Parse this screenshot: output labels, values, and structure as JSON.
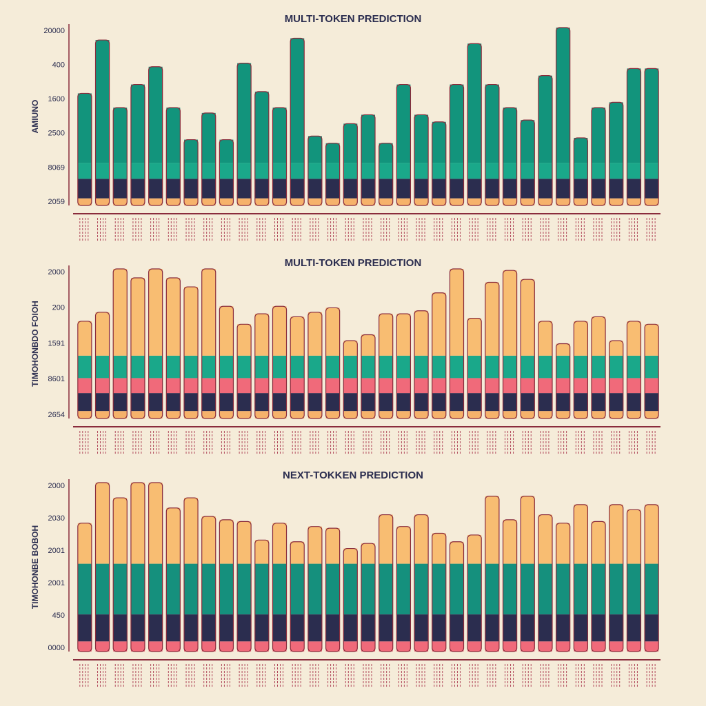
{
  "chart_data": [
    {
      "type": "stacked_bar",
      "title": "MULTI-TOKEN PREDICTION",
      "ylabel": "AMIUNO",
      "y_axis_labels": [
        "20000",
        "400",
        "1600",
        "2500",
        "8069",
        "2059"
      ],
      "categories": [
        null,
        null,
        null,
        null,
        null,
        null,
        null,
        null,
        null,
        null,
        null,
        null,
        null,
        null,
        null,
        null,
        null,
        null,
        null,
        null,
        null,
        null,
        null,
        null,
        null,
        null,
        null,
        null,
        null,
        null,
        null,
        null,
        null
      ],
      "ylim": [
        0,
        100
      ],
      "series": [
        {
          "color": "#f6b26b",
          "values": [
            4,
            4,
            4,
            4,
            4,
            4,
            4,
            4,
            4,
            4,
            4,
            4,
            4,
            4,
            4,
            4,
            4,
            4,
            4,
            4,
            4,
            4,
            4,
            4,
            4,
            4,
            4,
            4,
            4,
            4,
            4,
            4,
            4
          ]
        },
        {
          "color": "#2b2d4f",
          "values": [
            11,
            11,
            11,
            11,
            11,
            11,
            11,
            11,
            11,
            11,
            11,
            11,
            11,
            11,
            11,
            11,
            11,
            11,
            11,
            11,
            11,
            11,
            11,
            11,
            11,
            11,
            11,
            11,
            11,
            11,
            11,
            11,
            11
          ]
        },
        {
          "color": "#1aa88a",
          "values": [
            9,
            9,
            9,
            9,
            9,
            9,
            9,
            9,
            9,
            9,
            9,
            9,
            9,
            9,
            9,
            9,
            9,
            9,
            9,
            9,
            9,
            9,
            9,
            9,
            9,
            9,
            9,
            9,
            9,
            9,
            9,
            9,
            9
          ]
        },
        {
          "color": "#12947c",
          "values": [
            39,
            69,
            31,
            44,
            54,
            31,
            13,
            28,
            13,
            56,
            40,
            31,
            70,
            15,
            11,
            22,
            27,
            11,
            44,
            27,
            23,
            44,
            67,
            44,
            31,
            24,
            49,
            76,
            14,
            31,
            34,
            53,
            53
          ]
        }
      ]
    },
    {
      "type": "stacked_bar",
      "title": "MULTI-TOKEN PREDICTION",
      "ylabel": "TIMOHONBDO FOIOH",
      "y_axis_labels": [
        "2000",
        "200",
        "1591",
        "8601",
        "2654"
      ],
      "categories": [
        null,
        null,
        null,
        null,
        null,
        null,
        null,
        null,
        null,
        null,
        null,
        null,
        null,
        null,
        null,
        null,
        null,
        null,
        null,
        null,
        null,
        null,
        null,
        null,
        null,
        null,
        null,
        null,
        null,
        null,
        null,
        null,
        null
      ],
      "ylim": [
        0,
        100
      ],
      "series": [
        {
          "color": "#f6b26b",
          "values": [
            5,
            5,
            5,
            5,
            5,
            5,
            5,
            5,
            5,
            5,
            5,
            5,
            5,
            5,
            5,
            5,
            5,
            5,
            5,
            5,
            5,
            5,
            5,
            5,
            5,
            5,
            5,
            5,
            5,
            5,
            5,
            5,
            5
          ]
        },
        {
          "color": "#2b2d4f",
          "values": [
            12,
            12,
            12,
            12,
            12,
            12,
            12,
            12,
            12,
            12,
            12,
            12,
            12,
            12,
            12,
            12,
            12,
            12,
            12,
            12,
            12,
            12,
            12,
            12,
            12,
            12,
            12,
            12,
            12,
            12,
            12,
            12,
            12
          ]
        },
        {
          "color": "#f06a7a",
          "values": [
            10,
            10,
            10,
            10,
            10,
            10,
            10,
            10,
            10,
            10,
            10,
            10,
            10,
            10,
            10,
            10,
            10,
            10,
            10,
            10,
            10,
            10,
            10,
            10,
            10,
            10,
            10,
            10,
            10,
            10,
            10,
            10,
            10
          ]
        },
        {
          "color": "#1aa88a",
          "values": [
            15,
            15,
            15,
            15,
            15,
            15,
            15,
            15,
            15,
            15,
            15,
            15,
            15,
            15,
            15,
            15,
            15,
            15,
            15,
            15,
            15,
            15,
            15,
            15,
            15,
            15,
            15,
            15,
            15,
            15,
            15,
            15,
            15
          ]
        },
        {
          "color": "#f8bd72",
          "values": [
            23,
            29,
            58,
            52,
            58,
            52,
            46,
            58,
            33,
            21,
            28,
            33,
            26,
            29,
            32,
            10,
            14,
            28,
            28,
            30,
            42,
            58,
            25,
            49,
            57,
            51,
            23,
            8,
            23,
            26,
            10,
            23,
            21
          ]
        }
      ]
    },
    {
      "type": "stacked_bar",
      "title": "NEXT-TOKKEN PREDICTION",
      "ylabel": "TIMOHONBE BOBOH",
      "y_axis_labels": [
        "2000",
        "2030",
        "2001",
        "2001",
        "450",
        "0000"
      ],
      "categories": [
        null,
        null,
        null,
        null,
        null,
        null,
        null,
        null,
        null,
        null,
        null,
        null,
        null,
        null,
        null,
        null,
        null,
        null,
        null,
        null,
        null,
        null,
        null,
        null,
        null,
        null,
        null,
        null,
        null,
        null,
        null,
        null,
        null
      ],
      "ylim": [
        0,
        100
      ],
      "series": [
        {
          "color": "#f06a7a",
          "values": [
            6,
            6,
            6,
            6,
            6,
            6,
            6,
            6,
            6,
            6,
            6,
            6,
            6,
            6,
            6,
            6,
            6,
            6,
            6,
            6,
            6,
            6,
            6,
            6,
            6,
            6,
            6,
            6,
            6,
            6,
            6,
            6,
            6
          ]
        },
        {
          "color": "#2b2d4f",
          "values": [
            16,
            16,
            16,
            16,
            16,
            16,
            16,
            16,
            16,
            16,
            16,
            16,
            16,
            16,
            16,
            16,
            16,
            16,
            16,
            16,
            16,
            16,
            16,
            16,
            16,
            16,
            16,
            16,
            16,
            16,
            16,
            16,
            16
          ]
        },
        {
          "color": "#15907d",
          "values": [
            30,
            30,
            30,
            30,
            30,
            30,
            30,
            30,
            30,
            30,
            30,
            30,
            30,
            30,
            30,
            30,
            30,
            30,
            30,
            30,
            30,
            30,
            30,
            30,
            30,
            30,
            30,
            30,
            30,
            30,
            30,
            30,
            30
          ]
        },
        {
          "color": "#f8bd72",
          "values": [
            24,
            48,
            39,
            48,
            48,
            33,
            39,
            28,
            26,
            25,
            14,
            24,
            13,
            22,
            21,
            9,
            12,
            29,
            22,
            29,
            18,
            13,
            17,
            40,
            26,
            40,
            29,
            24,
            35,
            25,
            35,
            32,
            35
          ]
        }
      ]
    }
  ]
}
